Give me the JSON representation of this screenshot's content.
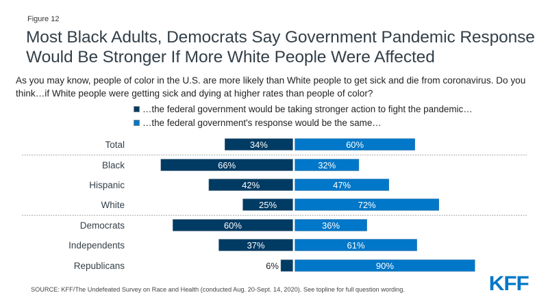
{
  "figure_label": "Figure 12",
  "title": "Most Black Adults, Democrats Say Government Pandemic Response Would Be Stronger If More White People Were Affected",
  "subtitle": "As you may know, people of color in the U.S. are more likely than White people to get sick and die from coronavirus. Do you think…if White people were getting sick and dying at higher rates than people of color?",
  "source": "SOURCE: KFF/The Undefeated Survey on Race and Health (conducted Aug. 20-Sept. 14, 2020). See topline for full question wording.",
  "logo_text": "KFF",
  "colors": {
    "stronger": "#003b63",
    "same": "#0077c8",
    "separator": "#aaaaaa",
    "logo": "#0077c8"
  },
  "chart_data": {
    "type": "bar",
    "orientation": "horizontal-diverging",
    "title": "Most Black Adults, Democrats Say Government Pandemic Response Would Be Stronger If More White People Were Affected",
    "xlabel": "",
    "ylabel": "",
    "xlim": [
      -100,
      100
    ],
    "grid": false,
    "legend_placement": "top",
    "categories": [
      "Total",
      "Black",
      "Hispanic",
      "White",
      "Democrats",
      "Independents",
      "Republicans"
    ],
    "groups_separated_after": [
      "Total",
      "White"
    ],
    "series": [
      {
        "name": "…the federal government would be taking stronger action to fight the pandemic…",
        "direction": "left",
        "color": "#003b63",
        "values": [
          34,
          66,
          42,
          25,
          60,
          37,
          6
        ],
        "labels": [
          "34%",
          "66%",
          "42%",
          "25%",
          "60%",
          "37%",
          "6%"
        ]
      },
      {
        "name": "…the federal government's response would be the same…",
        "direction": "right",
        "color": "#0077c8",
        "values": [
          60,
          32,
          47,
          72,
          36,
          61,
          90
        ],
        "labels": [
          "60%",
          "32%",
          "47%",
          "72%",
          "36%",
          "61%",
          "90%"
        ]
      }
    ]
  }
}
